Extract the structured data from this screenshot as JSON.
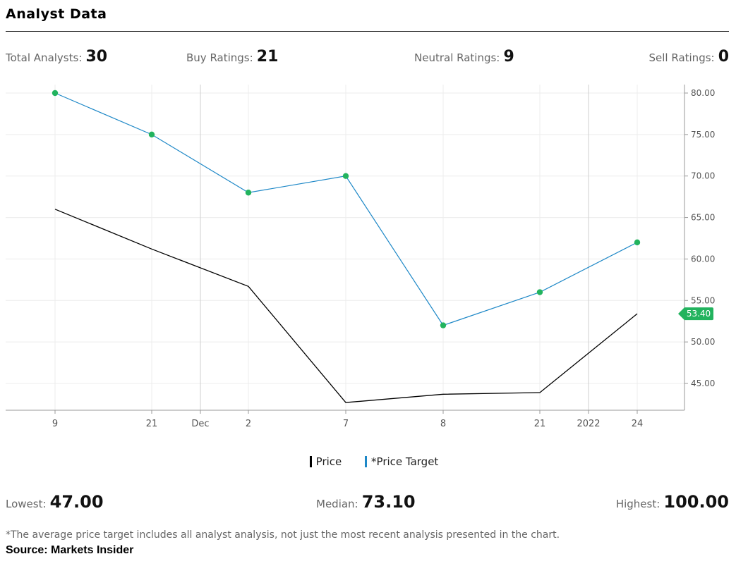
{
  "header": {
    "title": "Analyst Data"
  },
  "stats": [
    {
      "label": "Total Analysts:",
      "value": "30"
    },
    {
      "label": "Buy Ratings:",
      "value": "21"
    },
    {
      "label": "Neutral Ratings:",
      "value": "9"
    },
    {
      "label": "Sell Ratings:",
      "value": "0"
    }
  ],
  "chart_data": {
    "type": "line",
    "x": [
      "9",
      "21",
      "Dec",
      "2",
      "7",
      "8",
      "21",
      "2022",
      "24"
    ],
    "series": [
      {
        "name": "Price",
        "color": "#000000",
        "x": [
          "9",
          "21",
          "2",
          "7",
          "8",
          "21",
          "24"
        ],
        "values": [
          66.0,
          61.2,
          56.7,
          42.7,
          43.7,
          43.9,
          53.4
        ]
      },
      {
        "name": "*Price Target",
        "color": "#1e88c7",
        "marker_color": "#22b35e",
        "x": [
          "9",
          "21",
          "2",
          "7",
          "8",
          "21",
          "24"
        ],
        "values": [
          80.0,
          75.0,
          68.0,
          70.0,
          52.0,
          56.0,
          62.0
        ]
      }
    ],
    "yticks": [
      "80.00",
      "75.00",
      "70.00",
      "65.00",
      "60.00",
      "55.00",
      "50.00",
      "45.00"
    ],
    "ylim": [
      42,
      81
    ],
    "current_price_label": "53.40",
    "current_price_color": "#22b35e",
    "grid": true,
    "y_axis_side": "right"
  },
  "legend": {
    "price_label": "Price",
    "target_label": "*Price Target",
    "price_color": "#000000",
    "target_color": "#1e88c7"
  },
  "range": {
    "lowest_label": "Lowest:",
    "lowest_value": "47.00",
    "median_label": "Median:",
    "median_value": "73.10",
    "highest_label": "Highest:",
    "highest_value": "100.00"
  },
  "footnote": "*The average price target includes all analyst analysis, not just the most recent analysis presented in the chart.",
  "source": "Source: Markets Insider"
}
